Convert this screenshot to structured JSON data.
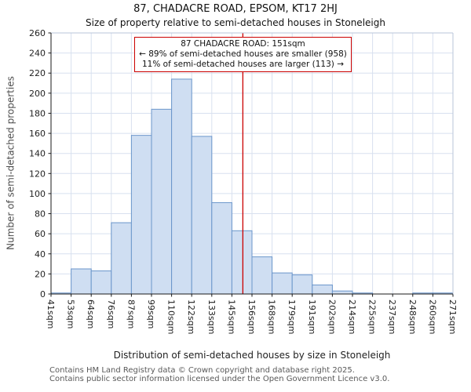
{
  "chart_data": {
    "type": "bar",
    "title": "87, CHADACRE ROAD, EPSOM, KT17 2HJ",
    "subtitle": "Size of property relative to semi-detached houses in Stoneleigh",
    "xlabel": "Distribution of semi-detached houses by size in Stoneleigh",
    "ylabel": "Number of semi-detached properties",
    "ylim": [
      0,
      260
    ],
    "ytick_step": 20,
    "grid": true,
    "bin_edges_sqm": [
      41,
      53,
      64,
      76,
      87,
      99,
      110,
      122,
      133,
      145,
      156,
      168,
      179,
      191,
      202,
      214,
      225,
      237,
      248,
      260,
      271
    ],
    "bin_labels": [
      "41sqm",
      "53sqm",
      "64sqm",
      "76sqm",
      "87sqm",
      "99sqm",
      "110sqm",
      "122sqm",
      "133sqm",
      "145sqm",
      "156sqm",
      "168sqm",
      "179sqm",
      "191sqm",
      "202sqm",
      "214sqm",
      "225sqm",
      "237sqm",
      "248sqm",
      "260sqm",
      "271sqm"
    ],
    "values": [
      1,
      25,
      23,
      71,
      158,
      184,
      214,
      157,
      91,
      63,
      37,
      21,
      19,
      9,
      3,
      1,
      0,
      0,
      1,
      1
    ],
    "marker": {
      "value_sqm": 151,
      "color": "#cc0000"
    },
    "bar_fill": "#cfdef2",
    "bar_stroke": "#6b96cb",
    "grid_color": "#d8e0ef",
    "axis_color": "#1a1a1a"
  },
  "annotation": {
    "line1": "87 CHADACRE ROAD: 151sqm",
    "line2": "← 89% of semi-detached houses are smaller (958)",
    "line3": "11% of semi-detached houses are larger (113) →",
    "border_color": "#cc0000"
  },
  "footer": {
    "line1": "Contains HM Land Registry data © Crown copyright and database right 2025.",
    "line2": "Contains public sector information licensed under the Open Government Licence v3.0."
  }
}
